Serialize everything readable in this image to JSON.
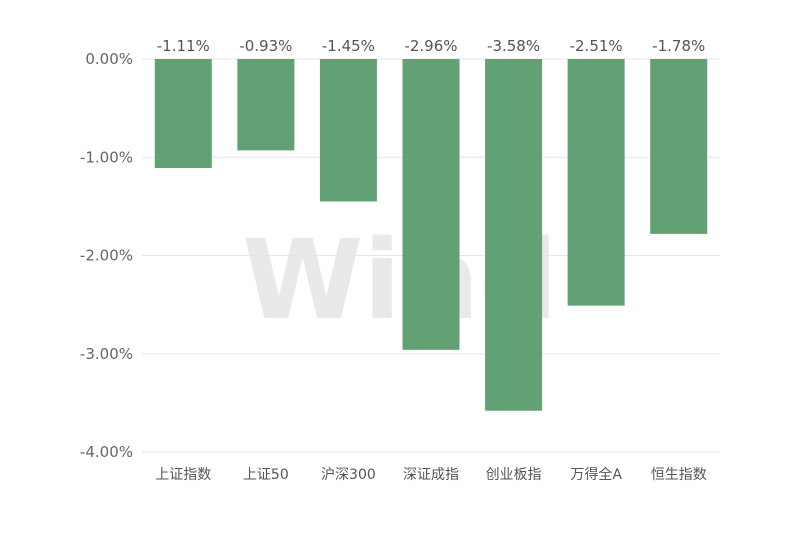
{
  "watermark": "Wind",
  "chart_data": {
    "type": "bar",
    "categories": [
      "上证指数",
      "上证50",
      "沪深300",
      "深证成指",
      "创业板指",
      "万得全A",
      "恒生指数"
    ],
    "values": [
      -1.11,
      -0.93,
      -1.45,
      -2.96,
      -3.58,
      -2.51,
      -1.78
    ],
    "value_labels": [
      "-1.11%",
      "-0.93%",
      "-1.45%",
      "-2.96%",
      "-3.58%",
      "-2.51%",
      "-1.78%"
    ],
    "yticks": [
      0,
      -1,
      -2,
      -3,
      -4
    ],
    "ytick_labels": [
      "0.00%",
      "-1.00%",
      "-2.00%",
      "-3.00%",
      "-4.00%"
    ],
    "ylim": [
      -4,
      0
    ],
    "grid": true,
    "bar_color": "#62a173",
    "grid_color": "#e6e6e6"
  }
}
